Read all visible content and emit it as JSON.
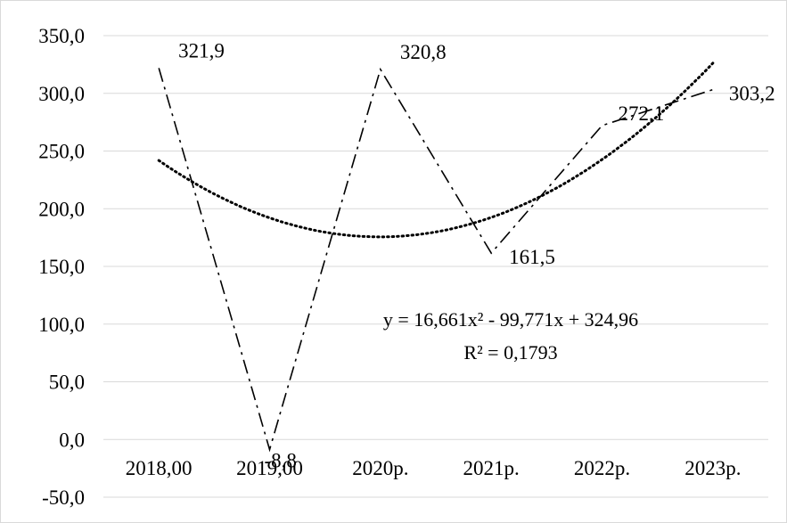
{
  "chart_data": {
    "type": "line",
    "title": "",
    "xlabel": "",
    "ylabel": "",
    "categories": [
      "2018,00",
      "2019,00",
      "2020р.",
      "2021р.",
      "2022р.",
      "2023р."
    ],
    "series": [
      {
        "values": [
          321.9,
          -8.8,
          320.8,
          161.5,
          272.1,
          303.2
        ],
        "style": "dash-dot"
      }
    ],
    "data_labels": [
      "321,9",
      "-8,8",
      "320,8",
      "161,5",
      "272,1",
      "303,2"
    ],
    "trendline": {
      "type": "polynomial-2",
      "a": 16.661,
      "b": -99.771,
      "c": 324.96,
      "style": "dotted",
      "equation": "y = 16,661x² - 99,771x + 324,96",
      "r2_label": "R² = 0,1793"
    },
    "ylim": [
      -50,
      350
    ],
    "yticks": [
      350,
      300,
      250,
      200,
      150,
      100,
      50,
      0,
      -50
    ],
    "ytick_labels": [
      "350,0",
      "300,0",
      "250,0",
      "200,0",
      "150,0",
      "100,0",
      "50,0",
      "0,0",
      "-50,0"
    ],
    "grid": true,
    "legend": "none",
    "colors": {
      "line": "#000000",
      "grid": "#d9d9d9",
      "background": "#ffffff"
    }
  }
}
